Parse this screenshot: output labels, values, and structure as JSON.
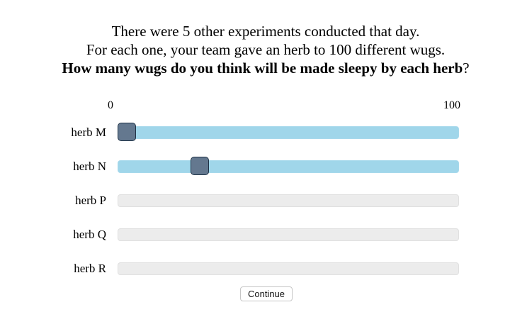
{
  "prompt": {
    "line1": "There were 5 other experiments conducted that day.",
    "line2": "For each one, your team gave an herb to 100 different wugs.",
    "question": "How many wugs do you think will be made sleepy by each herb",
    "question_end": "?"
  },
  "scale": {
    "min_label": "0",
    "max_label": "100",
    "min": 0,
    "max": 100
  },
  "sliders": [
    {
      "label": "herb M",
      "value": 1,
      "active": true
    },
    {
      "label": "herb N",
      "value": 23,
      "active": true
    },
    {
      "label": "herb P",
      "value": null,
      "active": false
    },
    {
      "label": "herb Q",
      "value": null,
      "active": false
    },
    {
      "label": "herb R",
      "value": null,
      "active": false
    }
  ],
  "continue_button": {
    "label": "Continue"
  },
  "colors": {
    "active_track": "#a0d6ea",
    "inactive_track": "#ececec",
    "handle_fill": "#64788f",
    "handle_border": "#1f3347"
  }
}
